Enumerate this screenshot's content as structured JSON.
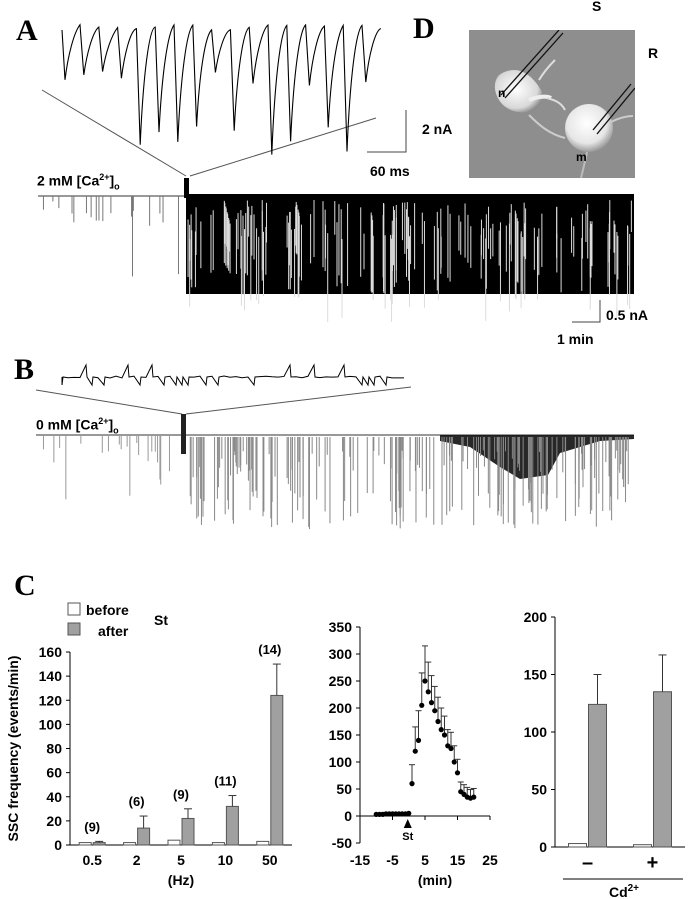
{
  "panel_labels": {
    "a": "A",
    "b": "B",
    "c": "C",
    "d": "D"
  },
  "panel_a": {
    "condition": "2 mM [Ca",
    "condition_sup": "2+",
    "condition_end": "]",
    "condition_sub": "o",
    "scale_current": "2 nA",
    "scale_time": "60 ms",
    "scale_current_long": "0.5 nA",
    "scale_time_long": "1 min"
  },
  "panel_b": {
    "condition": "0 mM [Ca",
    "condition_sup": "2+",
    "condition_end": "]",
    "condition_sub": "o"
  },
  "panel_d": {
    "label_s": "S",
    "label_r": "R",
    "label_n": "n",
    "label_m": "m"
  },
  "colors": {
    "bar_before": "#ffffff",
    "bar_after": "#a0a0a0",
    "trace": "#000000",
    "micrograph_bg": "#8e8e8e"
  },
  "chart_data": [
    {
      "type": "bar",
      "title": "",
      "ylabel": "SSC frequency (events/min)",
      "xlabel": "(Hz)",
      "ylim": [
        0,
        160
      ],
      "yticks": [
        0,
        20,
        40,
        60,
        80,
        100,
        120,
        140,
        160
      ],
      "categories": [
        "0.5",
        "2",
        "5",
        "10",
        "50"
      ],
      "n_labels": [
        "(9)",
        "(6)",
        "(9)",
        "(11)",
        "(14)"
      ],
      "legend": {
        "before": "before",
        "after": "after",
        "stim": "St"
      },
      "series": [
        {
          "name": "before",
          "values": [
            2,
            2,
            4,
            2,
            3
          ],
          "errors": [
            1,
            1,
            1,
            0.5,
            1
          ]
        },
        {
          "name": "after",
          "values": [
            2,
            14,
            22,
            32,
            124
          ],
          "errors": [
            1,
            10,
            8,
            9,
            26
          ]
        }
      ]
    },
    {
      "type": "scatter",
      "xlabel": "(min)",
      "ylabel": "",
      "xlim": [
        -15,
        25
      ],
      "ylim": [
        -50,
        350
      ],
      "xticks": [
        -15,
        -5,
        5,
        15,
        25
      ],
      "yticks": [
        -50,
        0,
        50,
        100,
        150,
        200,
        250,
        300,
        350
      ],
      "annotation": "St",
      "x": [
        -10,
        -9,
        -8,
        -7,
        -6,
        -5,
        -4,
        -3,
        -2,
        -1,
        0,
        1,
        2,
        3,
        4,
        5,
        6,
        7,
        8,
        9,
        10,
        11,
        12,
        13,
        14,
        15,
        16,
        17,
        18,
        19,
        20
      ],
      "y": [
        3,
        3,
        3,
        4,
        4,
        4,
        4,
        4,
        4,
        4,
        5,
        60,
        120,
        140,
        205,
        250,
        230,
        210,
        195,
        175,
        160,
        150,
        130,
        125,
        100,
        80,
        45,
        40,
        35,
        33,
        35
      ],
      "errors": [
        0,
        0,
        0,
        0,
        0,
        0,
        0,
        0,
        0,
        0,
        0,
        35,
        45,
        55,
        60,
        65,
        55,
        50,
        45,
        45,
        40,
        35,
        30,
        30,
        30,
        25,
        18,
        18,
        18,
        16,
        16
      ]
    },
    {
      "type": "bar",
      "xlabel": "Cd",
      "xlabel_sup": "2+",
      "ylim": [
        0,
        200
      ],
      "yticks": [
        0,
        50,
        100,
        150,
        200
      ],
      "categories": [
        "–",
        "+"
      ],
      "series": [
        {
          "name": "before",
          "values": [
            3,
            2
          ],
          "errors": [
            1,
            1
          ]
        },
        {
          "name": "after",
          "values": [
            124,
            135
          ],
          "errors": [
            26,
            32
          ]
        }
      ]
    }
  ]
}
